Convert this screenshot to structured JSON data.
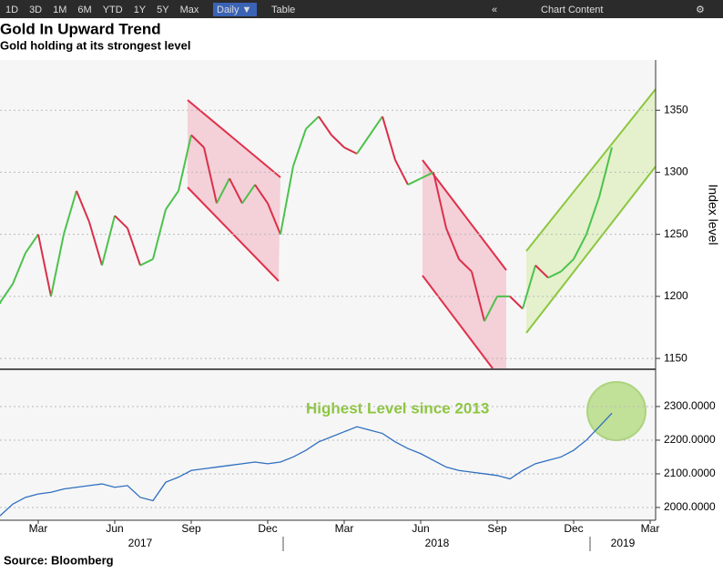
{
  "toolbar": {
    "ranges": [
      "1D",
      "3D",
      "1M",
      "6M",
      "YTD",
      "1Y",
      "5Y",
      "Max"
    ],
    "frequency": "Daily ▼",
    "table": "Table",
    "content": "Chart Content"
  },
  "chart_data": [
    {
      "type": "line",
      "title": "Gold In Upward Trend",
      "subtitle": "Gold holding at its strongest level",
      "y_label": "Index level",
      "categories": [
        null,
        null,
        null,
        "Mar",
        null,
        null,
        null,
        null,
        null,
        "Jun",
        null,
        null,
        null,
        null,
        null,
        "Sep",
        null,
        null,
        null,
        null,
        null,
        "Dec",
        null,
        null,
        null,
        null,
        null,
        "Mar",
        null,
        null,
        null,
        null,
        null,
        "Jun",
        null,
        null,
        null,
        null,
        null,
        "Sep",
        null,
        null,
        null,
        null,
        null,
        "Dec",
        null,
        null,
        null,
        null,
        null,
        "Mar"
      ],
      "years": [
        "2017",
        "2018",
        "2019"
      ],
      "values": [
        1195,
        1210,
        1235,
        1250,
        1200,
        1250,
        1285,
        1260,
        1225,
        1265,
        1255,
        1225,
        1230,
        1270,
        1285,
        1330,
        1320,
        1275,
        1295,
        1275,
        1290,
        1275,
        1250,
        1305,
        1335,
        1345,
        1330,
        1320,
        1315,
        1330,
        1345,
        1310,
        1290,
        1295,
        1300,
        1255,
        1230,
        1220,
        1180,
        1200,
        1200,
        1190,
        1225,
        1215,
        1220,
        1230,
        1250,
        1280,
        1320,
        null,
        null,
        null
      ],
      "up_color": "#4cc24c",
      "down_color": "#d9304a",
      "ylim": [
        1142,
        1389
      ],
      "yticks": [
        1150,
        1200,
        1250,
        1300,
        1350
      ],
      "grid": true
    },
    {
      "type": "line",
      "annotation": "Highest Level since 2013",
      "source": "Source:  Bloomberg",
      "values": [
        1975,
        2010,
        2030,
        2040,
        2045,
        2055,
        2060,
        2065,
        2070,
        2060,
        2065,
        2030,
        2020,
        2075,
        2090,
        2110,
        2115,
        2120,
        2125,
        2130,
        2135,
        2130,
        2135,
        2150,
        2170,
        2195,
        2210,
        2225,
        2240,
        2230,
        2220,
        2195,
        2175,
        2160,
        2140,
        2120,
        2110,
        2105,
        2100,
        2095,
        2085,
        2110,
        2130,
        2140,
        2150,
        2170,
        2200,
        2240,
        2280,
        null,
        null,
        null
      ],
      "color": "#2f6fbf",
      "ylim": [
        1962,
        2408
      ],
      "yticks": [
        {
          "value": 2000,
          "label": "2000.0000"
        },
        {
          "value": 2100,
          "label": "2100.0000"
        },
        {
          "value": 2200,
          "label": "2200.0000"
        },
        {
          "value": 2300,
          "label": "2300.0000"
        }
      ],
      "grid": true
    }
  ]
}
